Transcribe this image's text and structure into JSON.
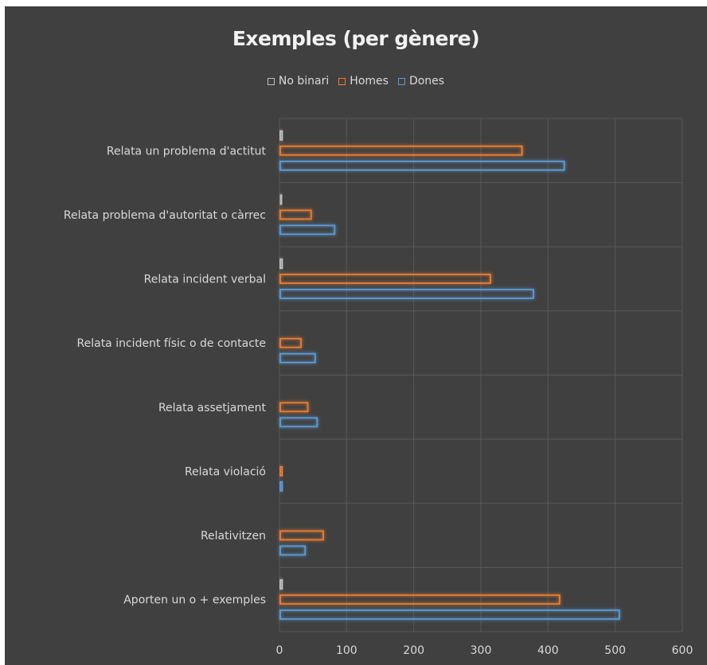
{
  "chart_data": {
    "type": "bar",
    "orientation": "horizontal",
    "title": "Exemples (per gènere)",
    "categories": [
      "Relata un problema d'actitut",
      "Relata problema d'autoritat o càrrec",
      "Relata incident verbal",
      "Relata incident físic o de contacte",
      "Relata assetjament",
      "Relata violació",
      "Relativitzen",
      "Aporten un o + exemples"
    ],
    "series": [
      {
        "name": "No binari",
        "color": "#bfbfbf",
        "values": [
          3,
          1,
          3,
          0,
          0,
          0,
          0,
          3
        ]
      },
      {
        "name": "Homes",
        "color": "#ed7d31",
        "values": [
          360,
          46,
          313,
          31,
          41,
          3,
          64,
          416
        ]
      },
      {
        "name": "Dones",
        "color": "#5b9bd5",
        "values": [
          423,
          81,
          377,
          52,
          55,
          3,
          37,
          505
        ]
      }
    ],
    "legend_order": [
      "No binari",
      "Homes",
      "Dones"
    ],
    "xlim": [
      0,
      600
    ],
    "xticks": [
      0,
      100,
      200,
      300,
      400,
      500,
      600
    ],
    "legend_position": "top",
    "grid": true,
    "background": "#404040"
  }
}
